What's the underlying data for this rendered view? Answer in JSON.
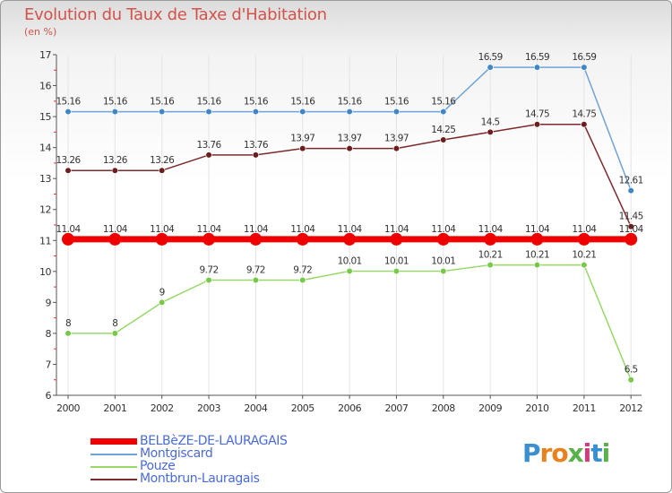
{
  "header": {
    "title": "Evolution du Taux de Taxe d'Habitation",
    "subtitle": "(en %)"
  },
  "logo": {
    "letters": [
      "P",
      "r",
      "o",
      "x",
      "i",
      "t",
      "i"
    ],
    "colors": [
      "#3a8fd0",
      "#e8821e",
      "#e8821e",
      "#58b24a",
      "#d23a7a",
      "#3a8fd0",
      "#58b24a"
    ]
  },
  "chart_data": {
    "type": "line",
    "title": "Evolution du Taux de Taxe d'Habitation",
    "ylabel": "(en %)",
    "xlabel": "",
    "ylim": [
      6,
      17
    ],
    "yticks": [
      6,
      7,
      8,
      9,
      10,
      11,
      12,
      13,
      14,
      15,
      16,
      17
    ],
    "x": [
      "2000",
      "2001",
      "2002",
      "2003",
      "2004",
      "2005",
      "2006",
      "2007",
      "2008",
      "2009",
      "2010",
      "2011",
      "2012"
    ],
    "series": [
      {
        "name": "Montgiscard",
        "color": "#6fa3d6",
        "dot": "#3f86c6",
        "width": 1.5,
        "radius": 3.3,
        "values": [
          15.16,
          15.16,
          15.16,
          15.16,
          15.16,
          15.16,
          15.16,
          15.16,
          15.16,
          16.59,
          16.59,
          16.59,
          12.61
        ],
        "labels": [
          "15.16",
          "15.16",
          "15.16",
          "15.16",
          "15.16",
          "15.16",
          "15.16",
          "15.16",
          "15.16",
          "16.59",
          "16.59",
          "16.59",
          "12.61"
        ]
      },
      {
        "name": "Montbrun-Lauragais",
        "color": "#7b2b2b",
        "dot": "#6b1e1e",
        "width": 1.5,
        "radius": 3.3,
        "values": [
          13.26,
          13.26,
          13.26,
          13.76,
          13.76,
          13.97,
          13.97,
          13.97,
          14.25,
          14.5,
          14.75,
          14.75,
          11.45
        ],
        "labels": [
          "13.26",
          "13.26",
          "13.26",
          "13.76",
          "13.76",
          "13.97",
          "13.97",
          "13.97",
          "14.25",
          "14.5",
          "14.75",
          "14.75",
          "11.45"
        ]
      },
      {
        "name": "Pouze",
        "color": "#98d86a",
        "dot": "#78c84a",
        "width": 1.5,
        "radius": 3.3,
        "values": [
          8,
          8,
          9,
          9.72,
          9.72,
          9.72,
          10.01,
          10.01,
          10.01,
          10.21,
          10.21,
          10.21,
          6.5
        ],
        "labels": [
          "8",
          "8",
          "9",
          "9.72",
          "9.72",
          "9.72",
          "10.01",
          "10.01",
          "10.01",
          "10.21",
          "10.21",
          "10.21",
          "6.5"
        ]
      },
      {
        "name": "BELBèZE-DE-LAURAGAIS",
        "color": "#ee0000",
        "dot": "#ee0000",
        "width": 7,
        "radius": 7,
        "values": [
          11.04,
          11.04,
          11.04,
          11.04,
          11.04,
          11.04,
          11.04,
          11.04,
          11.04,
          11.04,
          11.04,
          11.04,
          11.04
        ],
        "labels": [
          "11.04",
          "11.04",
          "11.04",
          "11.04",
          "11.04",
          "11.04",
          "11.04",
          "11.04",
          "11.04",
          "11.04",
          "11.04",
          "11.04",
          "11.04"
        ]
      }
    ],
    "legend": [
      {
        "name": "BELBèZE-DE-LAURAGAIS",
        "color": "#ee0000",
        "thick": true
      },
      {
        "name": "Montgiscard",
        "color": "#6fa3d6",
        "thick": false
      },
      {
        "name": "Pouze",
        "color": "#98d86a",
        "thick": false
      },
      {
        "name": "Montbrun-Lauragais",
        "color": "#7b2b2b",
        "thick": false
      }
    ]
  }
}
